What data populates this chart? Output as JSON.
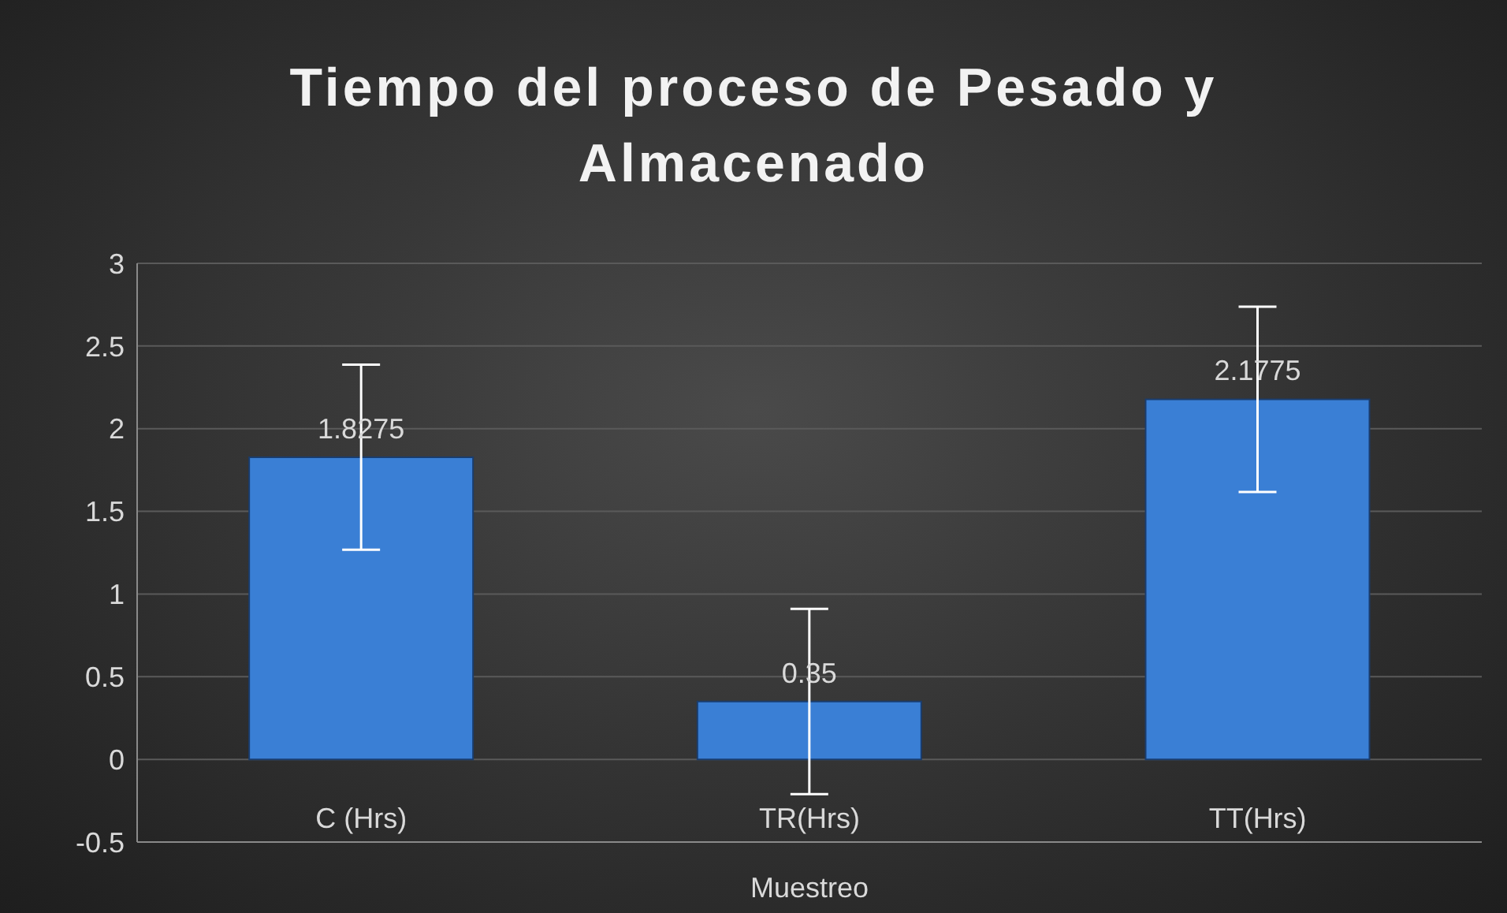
{
  "chart_data": {
    "type": "bar",
    "title": "Tiempo del proceso de Pesado y Almacenado",
    "xlabel": "Muestreo",
    "categories": [
      "C (Hrs)",
      "TR(Hrs)",
      "TT(Hrs)"
    ],
    "values": [
      1.8275,
      0.35,
      2.1775
    ],
    "errors": [
      0.56,
      0.56,
      0.56
    ],
    "color": "#3a7fd5",
    "ylim": [
      -0.5,
      3
    ],
    "yticks": [
      -0.5,
      0,
      0.5,
      1,
      1.5,
      2,
      2.5,
      3
    ],
    "grid": "y",
    "data_labels": true,
    "legend": false
  }
}
